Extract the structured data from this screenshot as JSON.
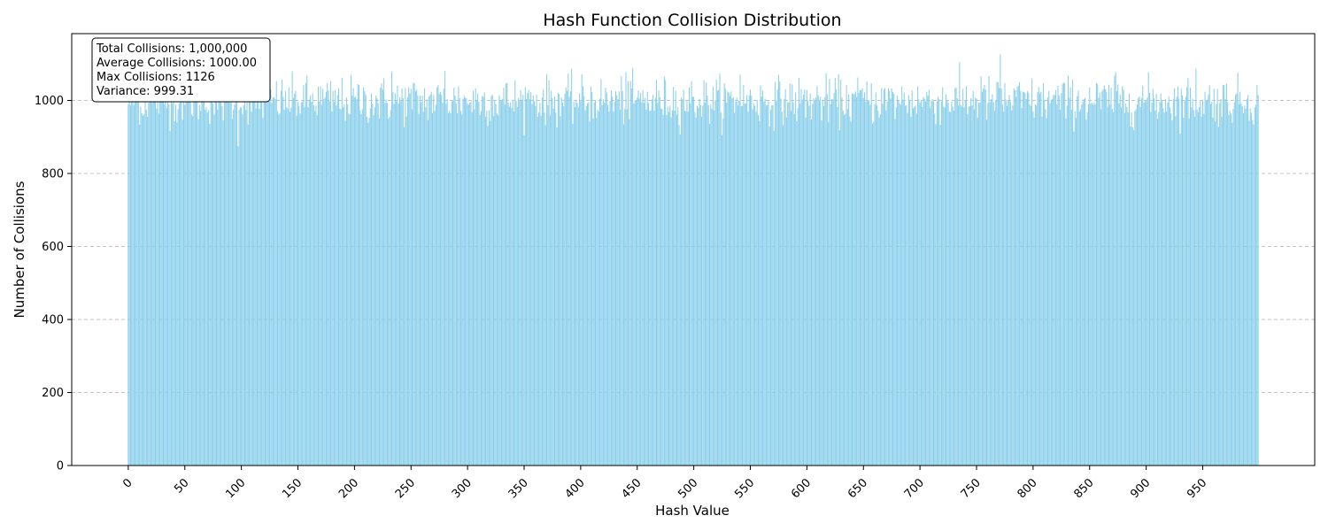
{
  "chart_data": {
    "type": "bar",
    "title": "Hash Function Collision Distribution",
    "xlabel": "Hash Value",
    "ylabel": "Number of Collisions",
    "bar_color": "#87ceeb",
    "grid": "y-dashed",
    "xlim": [
      -50,
      1049
    ],
    "ylim": [
      0,
      1183
    ],
    "x_ticks": [
      0,
      50,
      100,
      150,
      200,
      250,
      300,
      350,
      400,
      450,
      500,
      550,
      600,
      650,
      700,
      750,
      800,
      850,
      900,
      950
    ],
    "y_ticks": [
      0,
      200,
      400,
      600,
      800,
      1000
    ],
    "x_tick_labels": [
      "0",
      "50",
      "100",
      "150",
      "200",
      "250",
      "300",
      "350",
      "400",
      "450",
      "500",
      "550",
      "600",
      "650",
      "700",
      "750",
      "800",
      "850",
      "900",
      "950"
    ],
    "y_tick_labels": [
      "0",
      "200",
      "400",
      "600",
      "800",
      "1000"
    ],
    "categories_range": [
      0,
      999
    ],
    "baseline": 1000,
    "spread": 32,
    "notable_values": [
      {
        "x": 13,
        "y": 958
      },
      {
        "x": 38,
        "y": 1044
      },
      {
        "x": 97,
        "y": 875
      },
      {
        "x": 123,
        "y": 1040
      },
      {
        "x": 233,
        "y": 1079
      },
      {
        "x": 280,
        "y": 1080
      },
      {
        "x": 355,
        "y": 1003
      },
      {
        "x": 440,
        "y": 1078
      },
      {
        "x": 541,
        "y": 1070
      },
      {
        "x": 648,
        "y": 1028
      },
      {
        "x": 754,
        "y": 1066
      },
      {
        "x": 771,
        "y": 1126
      },
      {
        "x": 872,
        "y": 1067
      },
      {
        "x": 944,
        "y": 1087
      }
    ],
    "stats_box": {
      "lines": [
        "Total Collisions: 1,000,000",
        "Average Collisions: 1000.00",
        "Max Collisions: 1126",
        "Variance: 999.31"
      ]
    }
  }
}
